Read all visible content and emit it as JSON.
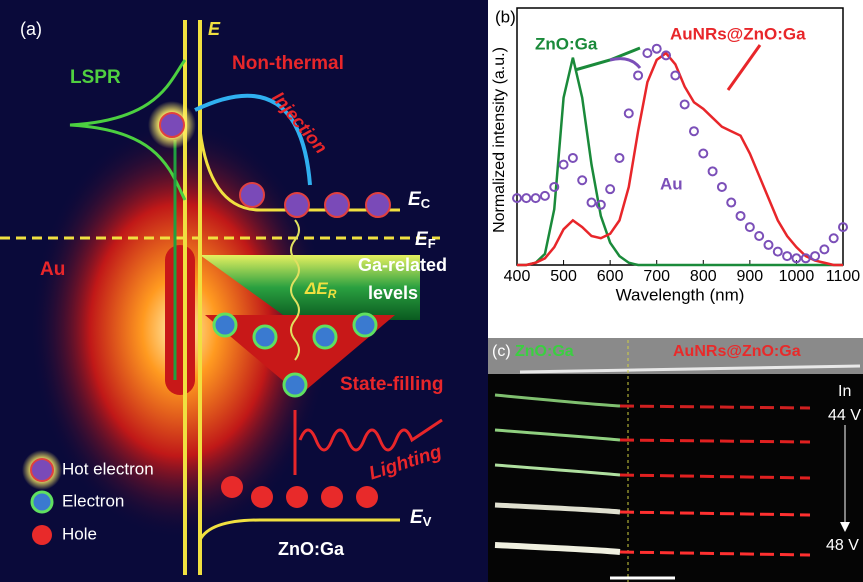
{
  "panel_a": {
    "label": "(a)",
    "energy_axis": "E",
    "lspr": "LSPR",
    "non_thermal": "Non-thermal",
    "injection": "Injection",
    "ec": {
      "main": "E",
      "sub": "C"
    },
    "ef": {
      "main": "E",
      "sub": "F"
    },
    "ev": {
      "main": "E",
      "sub": "V"
    },
    "au": "Au",
    "ga_related": "Ga-related",
    "levels": "levels",
    "delta_er": {
      "main": "ΔE",
      "sub": "R"
    },
    "state_filling": "State-filling",
    "lighting": "Lighting",
    "legend": [
      "Hot electron",
      "Electron",
      "Hole"
    ],
    "material": "ZnO:Ga"
  },
  "chart_data": {
    "type": "line",
    "panel_label": "(b)",
    "x_label": "Wavelength (nm)",
    "y_label": "Normalized intensity (a.u.)",
    "x": [
      400,
      420,
      440,
      460,
      480,
      500,
      520,
      540,
      560,
      580,
      600,
      620,
      640,
      660,
      680,
      700,
      720,
      740,
      760,
      780,
      800,
      820,
      840,
      860,
      880,
      900,
      920,
      940,
      960,
      980,
      1000,
      1020,
      1040,
      1060,
      1080,
      1100
    ],
    "xlim": [
      400,
      1100
    ],
    "xticks": [
      400,
      500,
      600,
      700,
      800,
      900,
      1000,
      1100
    ],
    "ylim": [
      0,
      1
    ],
    "series": [
      {
        "name": "ZnO:Ga",
        "color": "#1a8a3a",
        "style": "line",
        "values": [
          0,
          0,
          0.01,
          0.05,
          0.25,
          0.75,
          0.93,
          0.75,
          0.45,
          0.22,
          0.1,
          0.04,
          0.01,
          0,
          0,
          0,
          0,
          0,
          0,
          0,
          0,
          0,
          0,
          0,
          0,
          0,
          0,
          0,
          0,
          0,
          0,
          0,
          0,
          0,
          0,
          0
        ]
      },
      {
        "name": "AuNRs@ZnO:Ga",
        "color": "#e8262a",
        "style": "line",
        "values": [
          0,
          0,
          0.01,
          0.03,
          0.08,
          0.16,
          0.2,
          0.17,
          0.13,
          0.12,
          0.14,
          0.2,
          0.35,
          0.6,
          0.82,
          0.92,
          0.95,
          0.9,
          0.8,
          0.73,
          0.7,
          0.66,
          0.62,
          0.6,
          0.58,
          0.5,
          0.4,
          0.3,
          0.2,
          0.13,
          0.08,
          0.04,
          0.02,
          0.01,
          0,
          0
        ]
      },
      {
        "name": "Au",
        "color": "#7b4fb8",
        "style": "markers",
        "values": [
          0.3,
          0.3,
          0.3,
          0.31,
          0.35,
          0.45,
          0.48,
          0.38,
          0.28,
          0.27,
          0.34,
          0.48,
          0.68,
          0.85,
          0.95,
          0.97,
          0.94,
          0.85,
          0.72,
          0.6,
          0.5,
          0.42,
          0.35,
          0.28,
          0.22,
          0.17,
          0.13,
          0.09,
          0.06,
          0.04,
          0.03,
          0.03,
          0.04,
          0.07,
          0.12,
          0.17
        ]
      }
    ]
  },
  "panel_c": {
    "label": "(c)",
    "left": "ZnO:Ga",
    "right": "AuNRs@ZnO:Ga",
    "electrode": "In",
    "v_start": "44 V",
    "v_end": "48 V"
  }
}
